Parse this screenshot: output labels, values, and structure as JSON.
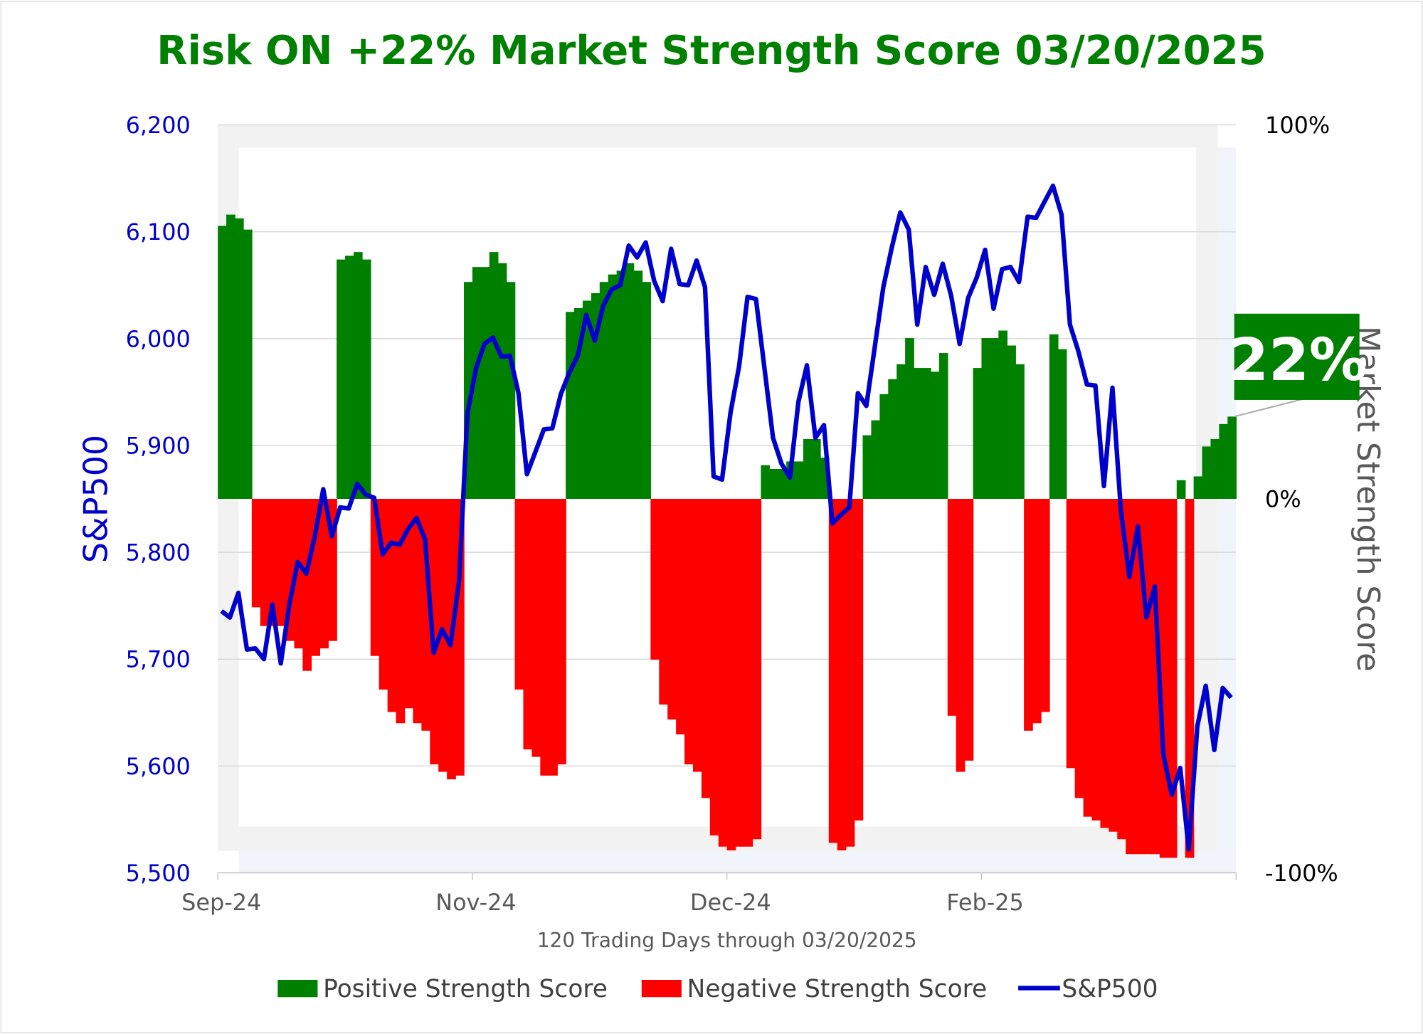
{
  "chart_data": {
    "type": "bar+line",
    "title": "Risk ON +22% Market Strength Score 03/20/2025",
    "xlabel": "120 Trading Days through 03/20/2025",
    "ylabel": "S&P500",
    "y2label": "Market Strength Score",
    "ylim": [
      5500,
      6200
    ],
    "y2lim": [
      -100,
      100
    ],
    "y_ticks": [
      "6,200",
      "6,100",
      "6,000",
      "5,900",
      "5,800",
      "5,700",
      "5,600",
      "5,500"
    ],
    "y2_ticks": [
      "100%",
      "0%",
      "-100%"
    ],
    "x_ticks": [
      {
        "label": "Sep-24",
        "day": 0
      },
      {
        "label": "Nov-24",
        "day": 30
      },
      {
        "label": "Dec-24",
        "day": 60
      },
      {
        "label": "Feb-25",
        "day": 90
      }
    ],
    "grid": true,
    "legend_position": "bottom",
    "legend": [
      "Positive Strength Score",
      "Negative Strength Score",
      "S&P500"
    ],
    "callout": "22%",
    "colors": {
      "positive": "#008000",
      "negative": "#ff0000",
      "line": "#0000cc"
    },
    "strength_score": [
      73,
      76,
      75,
      72,
      -29,
      -34,
      -34,
      -34,
      -38,
      -40,
      -46,
      -42,
      -40,
      -38,
      64,
      65,
      66,
      64,
      -42,
      -51,
      -57,
      -60,
      -56,
      -60,
      -62,
      -71,
      -73,
      -75,
      -74,
      58,
      62,
      62,
      66,
      63,
      58,
      -51,
      -67,
      -69,
      -74,
      -74,
      -71,
      50,
      51,
      53,
      55,
      58,
      60,
      61,
      63,
      61,
      58,
      -43,
      -55,
      -59,
      -63,
      -71,
      -73,
      -80,
      -90,
      -93,
      -94,
      -93,
      -93,
      -91,
      9,
      8,
      8,
      10,
      10,
      16,
      16,
      11,
      -92,
      -94,
      -93,
      -86,
      17,
      21,
      28,
      32,
      36,
      43,
      35,
      35,
      34,
      39,
      -58,
      -73,
      -70,
      35,
      43,
      43,
      45,
      41,
      36,
      -62,
      -60,
      -57,
      44,
      40,
      -72,
      -80,
      -85,
      -86,
      -88,
      -89,
      -91,
      -95,
      -95,
      -95,
      -95,
      -96,
      -96,
      5,
      -96,
      6,
      14,
      16,
      20,
      22
    ],
    "sp500": [
      5745,
      5739,
      5762,
      5709,
      5710,
      5700,
      5751,
      5696,
      5751,
      5791,
      5780,
      5815,
      5859,
      5815,
      5842,
      5841,
      5864,
      5854,
      5851,
      5798,
      5809,
      5807,
      5822,
      5832,
      5812,
      5706,
      5728,
      5713,
      5773,
      5930,
      5972,
      5995,
      6001,
      5983,
      5984,
      5949,
      5873,
      5894,
      5915,
      5916,
      5948,
      5968,
      5984,
      6022,
      5998,
      6031,
      6046,
      6050,
      6087,
      6076,
      6090,
      6054,
      6035,
      6084,
      6051,
      6050,
      6073,
      6048,
      5871,
      5868,
      5931,
      5974,
      6039,
      6037,
      5972,
      5907,
      5883,
      5870,
      5941,
      5975,
      5907,
      5919,
      5827,
      5835,
      5842,
      5949,
      5937,
      5992,
      6048,
      6085,
      6118,
      6102,
      6013,
      6067,
      6041,
      6070,
      6040,
      5995,
      6038,
      6057,
      6083,
      6028,
      6065,
      6067,
      6053,
      6114,
      6113,
      6128,
      6143,
      6116,
      6013,
      5988,
      5957,
      5956,
      5862,
      5954,
      5839,
      5777,
      5824,
      5739,
      5768,
      5611,
      5573,
      5598,
      5522,
      5637,
      5675,
      5615,
      5673,
      5664
    ]
  }
}
